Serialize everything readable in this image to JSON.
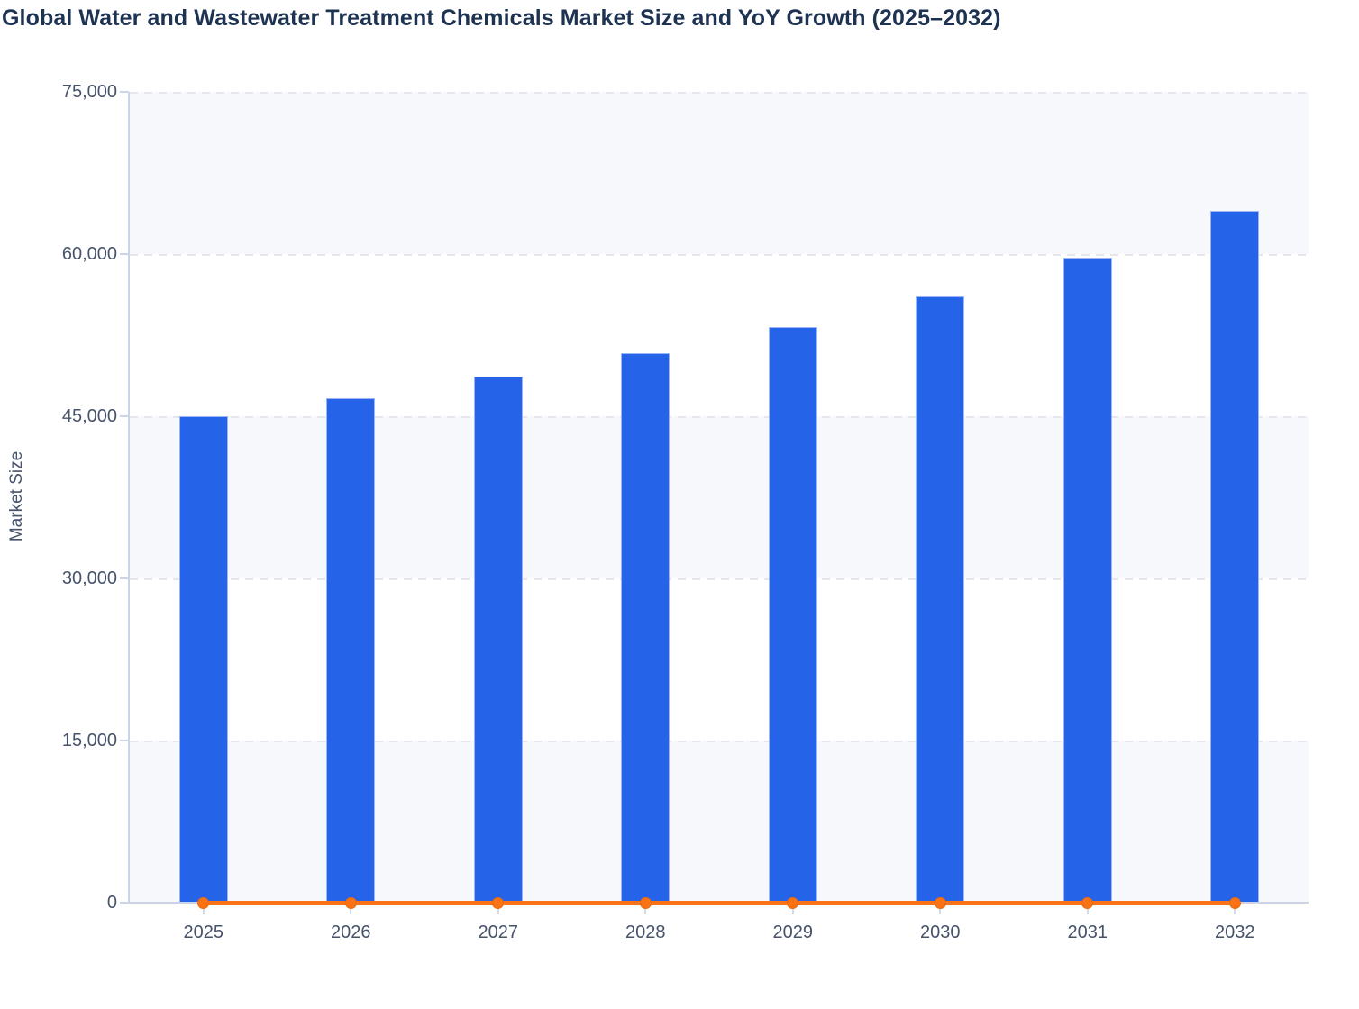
{
  "page": {
    "title": "Global Water and Wastewater Treatment Chemicals Market Size and YoY Growth (2025–2032)"
  },
  "chart_data": {
    "type": "bar",
    "title": "Global Water and Wastewater Treatment Chemicals Market Size and YoY Growth (2025–2032)",
    "categories": [
      "2025",
      "2026",
      "2027",
      "2028",
      "2029",
      "2030",
      "2031",
      "2032"
    ],
    "series": [
      {
        "name": "Market Size",
        "type": "bar",
        "color": "#2563e8",
        "values": [
          45000,
          46700,
          48700,
          50800,
          53250,
          56100,
          59700,
          64000
        ]
      },
      {
        "name": "YoY Growth",
        "type": "line",
        "color": "#f97316",
        "values_on_left_axis": [
          0,
          0,
          0,
          0,
          0,
          0,
          0,
          0
        ]
      }
    ],
    "xlabel": "",
    "ylabel": "Market Size",
    "ylim": [
      0,
      75000
    ],
    "yticks": [
      0,
      15000,
      30000,
      45000,
      60000,
      75000
    ],
    "ytick_labels": [
      "0",
      "15,000",
      "30,000",
      "45,000",
      "60,000",
      "75,000"
    ],
    "grid": "horizontal-dashed",
    "legend": "none",
    "plot_bands": "alternating-gray-white-from-top",
    "colors": {
      "bar_fill": "#2563e8",
      "bar_border": "#9db5f4",
      "line": "#f97316",
      "band_shaded": "#f7f8fb",
      "gridline": "#e5e7ed",
      "axis_line": "#ccd4e8",
      "tick_text": "#47536b",
      "title_text": "#1e3352"
    }
  }
}
